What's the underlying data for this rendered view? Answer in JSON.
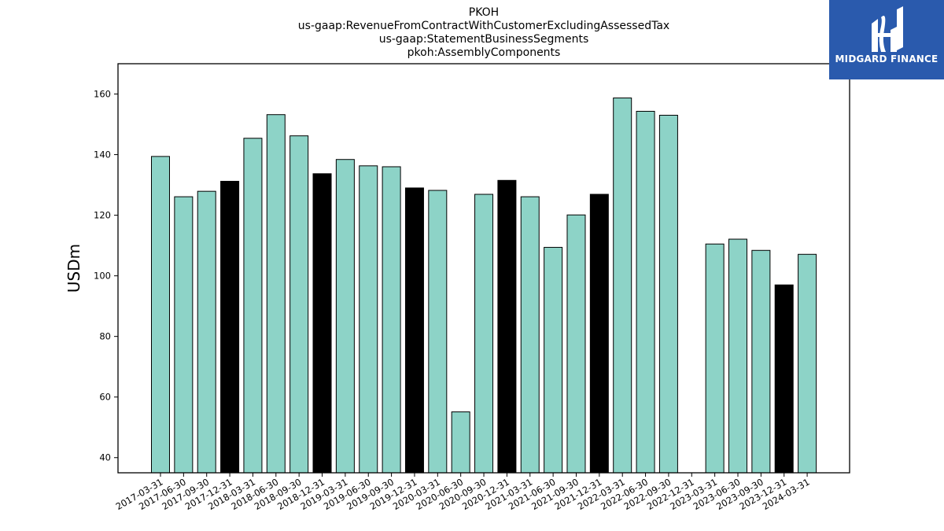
{
  "chart_data": {
    "type": "bar",
    "title_lines": [
      "PKOH",
      "us-gaap:RevenueFromContractWithCustomerExcludingAssessedTax",
      "us-gaap:StatementBusinessSegments",
      "pkoh:AssemblyComponents"
    ],
    "ylabel": "USDm",
    "xlabel": "",
    "ylim": [
      35,
      170
    ],
    "yticks": [
      40,
      60,
      80,
      100,
      120,
      140,
      160
    ],
    "grid": false,
    "colors": {
      "regular": "#8dd3c7",
      "q4": "#000000",
      "edge": "#000000"
    },
    "categories": [
      "2017-03-31",
      "2017-06-30",
      "2017-09-30",
      "2017-12-31",
      "2018-03-31",
      "2018-06-30",
      "2018-09-30",
      "2018-12-31",
      "2019-03-31",
      "2019-06-30",
      "2019-09-30",
      "2019-12-31",
      "2020-03-31",
      "2020-06-30",
      "2020-09-30",
      "2020-12-31",
      "2021-03-31",
      "2021-06-30",
      "2021-09-30",
      "2021-12-31",
      "2022-03-31",
      "2022-06-30",
      "2022-09-30",
      "2022-12-31",
      "2023-03-31",
      "2023-06-30",
      "2023-09-30",
      "2023-12-31",
      "2024-03-31"
    ],
    "values": [
      139.4,
      126.1,
      127.9,
      131.2,
      145.4,
      153.2,
      146.2,
      133.7,
      138.4,
      136.3,
      136.0,
      129.0,
      128.2,
      55.1,
      126.9,
      131.5,
      126.1,
      109.4,
      120.1,
      126.9,
      158.7,
      154.3,
      153.0,
      null,
      110.5,
      112.1,
      108.4,
      97.0,
      107.1
    ],
    "highlight": [
      false,
      false,
      false,
      true,
      false,
      false,
      false,
      true,
      false,
      false,
      false,
      true,
      false,
      false,
      false,
      true,
      false,
      false,
      false,
      true,
      false,
      false,
      false,
      true,
      false,
      false,
      false,
      true,
      false
    ]
  },
  "logo": {
    "text": "MIDGARD FINANCE"
  }
}
